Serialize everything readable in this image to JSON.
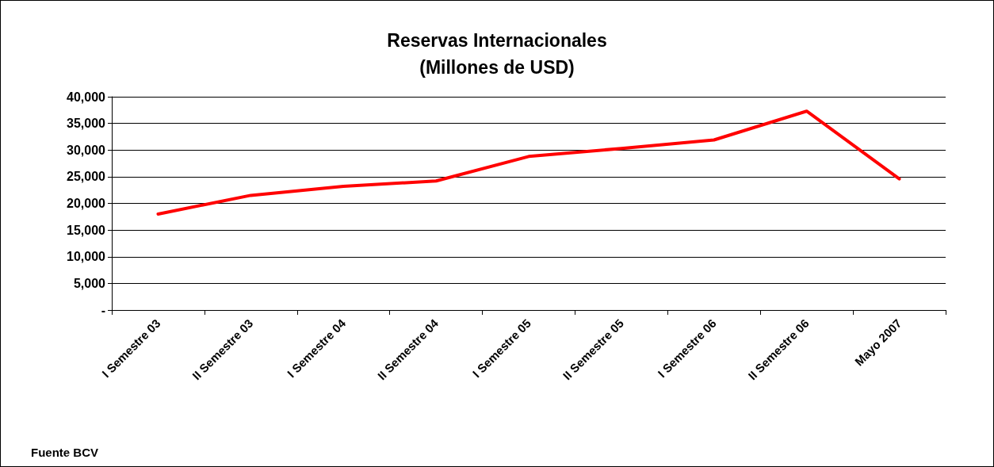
{
  "chart_data": {
    "type": "line",
    "title": "Reservas Internacionales\n(Millones de USD)",
    "categories": [
      "I Semestre 03",
      "II Semestre 03",
      "I Semestre 04",
      "II Semestre 04",
      "I Semestre 05",
      "II Semestre 05",
      "I Semestre 06",
      "II Semestre 06",
      "Mayo 2007"
    ],
    "series": [
      {
        "color": "#ff0000",
        "values": [
          18000,
          21500,
          23200,
          24200,
          28800,
          30300,
          31900,
          37300,
          24600
        ]
      }
    ],
    "ylim": [
      0,
      40000
    ],
    "yticks": [
      {
        "value": 0,
        "label": "-"
      },
      {
        "value": 5000,
        "label": "5,000"
      },
      {
        "value": 10000,
        "label": "10,000"
      },
      {
        "value": 15000,
        "label": "15,000"
      },
      {
        "value": 20000,
        "label": "20,000"
      },
      {
        "value": 25000,
        "label": "25,000"
      },
      {
        "value": 30000,
        "label": "30,000"
      },
      {
        "value": 35000,
        "label": "35,000"
      },
      {
        "value": 40000,
        "label": "40,000"
      }
    ],
    "grid": "y",
    "marker": "none",
    "line_style": "solid",
    "annotations": [
      "Fuente BCV"
    ]
  }
}
